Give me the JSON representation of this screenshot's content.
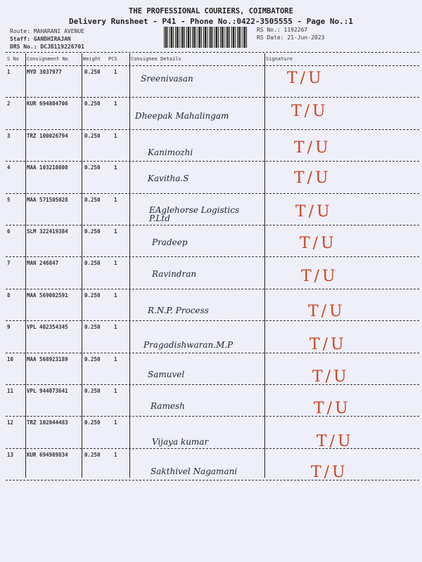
{
  "header": {
    "company": "THE PROFESSIONAL COURIERS, COIMBATORE",
    "subtitle": "Delivery Runsheet - P41 - Phone No.:0422-3505555 - Page No.:1",
    "route": "Route: MAHARANI  AVENUE",
    "staff": "Staff: GANDHIRAJAN",
    "drs": "DRS No.: DCJB119226701",
    "rs_no": "RS No.: 1192267",
    "rs_date": "RS Date: 21-Jun-2023"
  },
  "columns": {
    "sno": "S No",
    "consignment": "Consignment No",
    "weight": "Weight",
    "pcs": "PCS",
    "details": "Consignee Details",
    "signature": "Signature"
  },
  "rows": [
    {
      "sno": "1",
      "cno": "MYD 3037977",
      "weight": "0.250",
      "pcs": "1",
      "name": "Sreenivasan",
      "sig": "T/U"
    },
    {
      "sno": "2",
      "cno": "KUR 694804706",
      "weight": "0.250",
      "pcs": "1",
      "name": "Dheepak Mahalingam",
      "sig": "T/U"
    },
    {
      "sno": "3",
      "cno": "TRZ 100026794",
      "weight": "0.250",
      "pcs": "1",
      "name": "Kanimozhi",
      "sig": "T/U"
    },
    {
      "sno": "4",
      "cno": "MAA 103210808",
      "weight": "0.250",
      "pcs": "1",
      "name": "Kavitha.S",
      "sig": "T/U"
    },
    {
      "sno": "5",
      "cno": "MAA 571505028",
      "weight": "0.250",
      "pcs": "1",
      "name": "EAglehorse Logistics P.Ltd",
      "sig": "T/U"
    },
    {
      "sno": "6",
      "cno": "SLM 322419384",
      "weight": "0.250",
      "pcs": "1",
      "name": "Pradeep",
      "sig": "T/U"
    },
    {
      "sno": "7",
      "cno": "MAN 246847",
      "weight": "0.250",
      "pcs": "1",
      "name": "Ravindran",
      "sig": "T/U"
    },
    {
      "sno": "8",
      "cno": "MAA 569082591",
      "weight": "0.250",
      "pcs": "1",
      "name": "R.N.P. Process",
      "sig": "T/U"
    },
    {
      "sno": "9",
      "cno": "VPL 402354345",
      "weight": "0.250",
      "pcs": "1",
      "name": "Pragadishwaran.M.P",
      "sig": "T/U"
    },
    {
      "sno": "10",
      "cno": "MAA 568923189",
      "weight": "0.250",
      "pcs": "1",
      "name": "Samuvel",
      "sig": "T/U"
    },
    {
      "sno": "11",
      "cno": "VPL 944073641",
      "weight": "0.250",
      "pcs": "1",
      "name": "Ramesh",
      "sig": "T/U"
    },
    {
      "sno": "12",
      "cno": "TRZ 102044483",
      "weight": "0.250",
      "pcs": "1",
      "name": "Vijaya kumar",
      "sig": "T/U"
    },
    {
      "sno": "13",
      "cno": "KUR 694989834",
      "weight": "0.250",
      "pcs": "1",
      "name": "Sakthivel Nagamani",
      "sig": "T/U"
    }
  ]
}
